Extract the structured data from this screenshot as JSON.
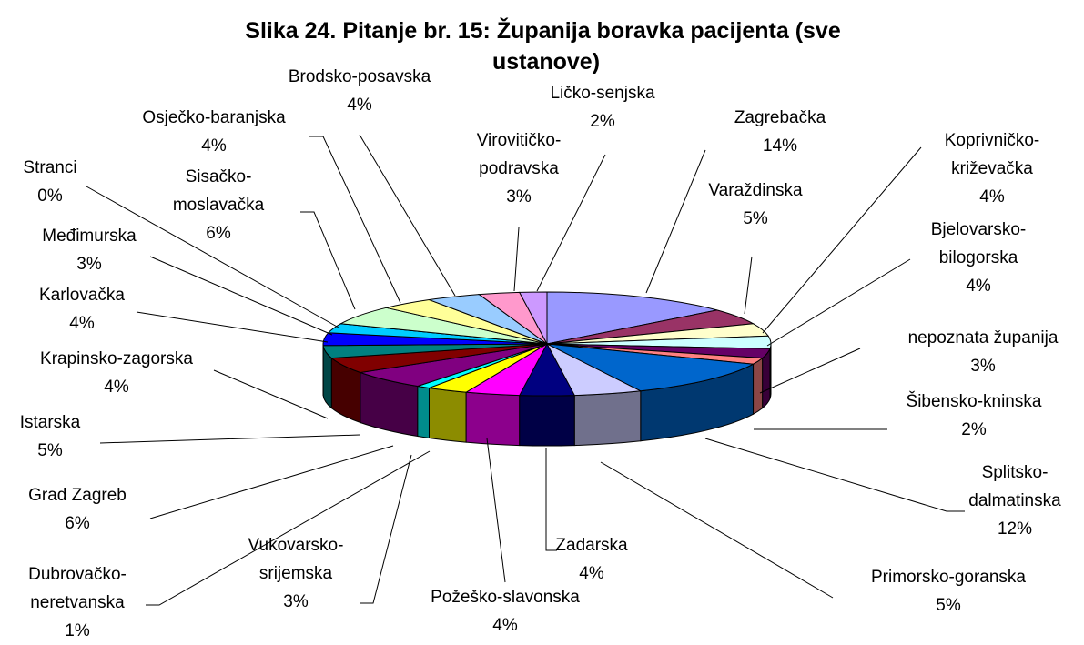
{
  "chart_data": {
    "type": "pie3d",
    "title": "Slika 24. Pitanje br. 15: Županija boravka pacijenta (sve ustanove)",
    "categories": [
      "Zagrebačka",
      "Varaždinska",
      "Koprivničko-križevačka",
      "Bjelovarsko-bilogorska",
      "nepoznata županija",
      "Šibensko-kninska",
      "Splitsko-dalmatinska",
      "Primorsko-goranska",
      "Zadarska",
      "Požeško-slavonska",
      "Vukovarsko-srijemska",
      "Dubrovačko-neretvanska",
      "Grad Zagreb",
      "Istarska",
      "Krapinsko-zagorska",
      "Karlovačka",
      "Međimurska",
      "Stranci",
      "Sisačko-moslavačka",
      "Osječko-baranjska",
      "Brodsko-posavska",
      "Virovitičko-podravska",
      "Ličko-senjska"
    ],
    "values": [
      14,
      5,
      4,
      4,
      3,
      2,
      12,
      5,
      4,
      4,
      3,
      1,
      6,
      5,
      4,
      4,
      3,
      0,
      6,
      4,
      4,
      3,
      2
    ],
    "value_labels": [
      "14%",
      "5%",
      "4%",
      "4%",
      "3%",
      "2%",
      "12%",
      "5%",
      "4%",
      "4%",
      "3%",
      "1%",
      "6%",
      "5%",
      "4%",
      "4%",
      "3%",
      "0%",
      "6%",
      "4%",
      "4%",
      "3%",
      "2%"
    ],
    "colors": [
      "#9999FF",
      "#993366",
      "#FFFFCC",
      "#CCFFFF",
      "#660066",
      "#FF8080",
      "#0066CC",
      "#CCCCFF",
      "#000080",
      "#FF00FF",
      "#FFFF00",
      "#00FFFF",
      "#800080",
      "#800000",
      "#008080",
      "#0000FF",
      "#00CCFF",
      "#CCFFFF",
      "#CCFFCC",
      "#FFFF99",
      "#99CCFF",
      "#FF99CC",
      "#CC99FF"
    ]
  }
}
